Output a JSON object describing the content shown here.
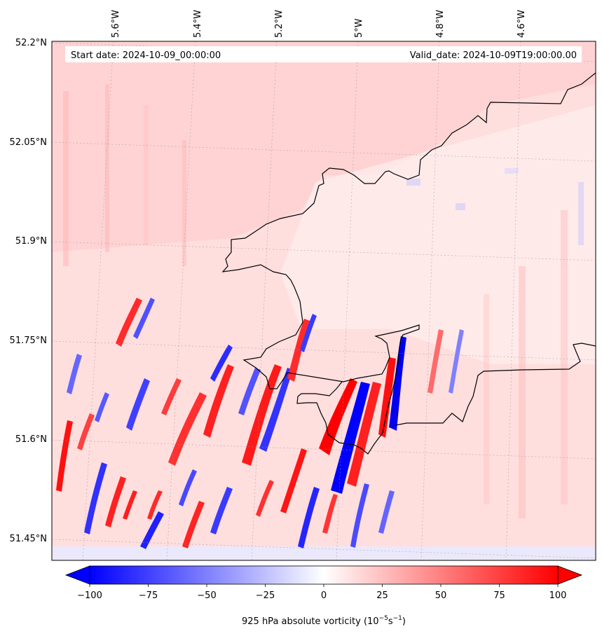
{
  "chart_data": {
    "type": "heatmap",
    "info_box": {
      "start_label": "Start date: 2024-10-09_00:00:00",
      "valid_label": "Valid_date: 2024-10-09T19:00:00.00"
    },
    "lon_ticks": [
      "5.6°W",
      "5.4°W",
      "5.2°W",
      "5°W",
      "4.8°W",
      "4.6°W"
    ],
    "lat_ticks": [
      "52.2°N",
      "52.05°N",
      "51.9°N",
      "51.75°N",
      "51.6°N",
      "51.45°N"
    ],
    "lon_range": [
      -5.75,
      -4.42
    ],
    "lat_range": [
      51.42,
      52.2
    ],
    "grid": true,
    "colormap": "bwr",
    "colorbar": {
      "ticks": [
        "−100",
        "−75",
        "−50",
        "−25",
        "0",
        "25",
        "50",
        "75",
        "100"
      ],
      "range": [
        -100,
        100
      ],
      "extend": "both",
      "label_main": "925 hPa absolute vorticity (10",
      "label_sup1": "−5",
      "label_mid": "s",
      "label_sup2": "−1",
      "label_end": ")"
    },
    "colors": {
      "negative": "#0000ff",
      "zero": "#ffffff",
      "positive": "#ff0000",
      "coastline": "#000000"
    }
  }
}
